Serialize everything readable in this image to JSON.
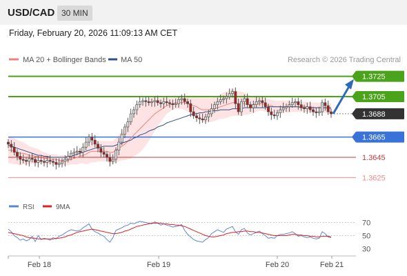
{
  "header": {
    "symbol": "USD/CAD",
    "timeframe": "30 MIN"
  },
  "date_line": "Friday, February 20, 2026 11:09:13 AM CET",
  "colors": {
    "resistance": "#4aa31a",
    "current": "#333333",
    "pivot": "#3a73d8",
    "support1": "#c23b3b",
    "support2": "#f08a8a",
    "candle_up": "#d8dcd8",
    "candle_down": "#a32222",
    "bollinger_fill": "#fde3e3",
    "ma20": "#f08080",
    "ma50": "#2e4f8a",
    "rsi": "#5b86d8",
    "rsi_ma": "#e02020",
    "arrow": "#2f6bb5"
  },
  "chart_data": [
    {
      "type": "candlestick",
      "title": "",
      "legend": [
        {
          "name": "MA 20 + Bollinger Bands",
          "color": "#f08080"
        },
        {
          "name": "MA 50",
          "color": "#2e4f8a"
        }
      ],
      "watermark": "Research © 2026 Trading Central",
      "ylim": [
        1.3615,
        1.3735
      ],
      "levels": [
        {
          "label": "1.3725",
          "value": 1.3725,
          "kind": "resistance"
        },
        {
          "label": "1.3705",
          "value": 1.3705,
          "kind": "resistance"
        },
        {
          "label": "1.3688",
          "value": 1.3688,
          "kind": "current"
        },
        {
          "label": "1.3665",
          "value": 1.3665,
          "kind": "pivot"
        },
        {
          "label": "1.3645",
          "value": 1.3645,
          "kind": "support"
        },
        {
          "label": "1.3625",
          "value": 1.3625,
          "kind": "support"
        }
      ],
      "x_ticks": [
        "Feb 18",
        "Feb 19",
        "Feb 20",
        "Feb 21"
      ],
      "arrow": {
        "from": 1.3688,
        "to": 1.3725,
        "direction": "up"
      },
      "close": [
        1.3658,
        1.3655,
        1.365,
        1.3646,
        1.3643,
        1.3642,
        1.3641,
        1.3644,
        1.3643,
        1.364,
        1.3642,
        1.3641,
        1.364,
        1.3642,
        1.3641,
        1.364,
        1.3638,
        1.3639,
        1.3641,
        1.3643,
        1.3646,
        1.3649,
        1.365,
        1.3651,
        1.365,
        1.3655,
        1.366,
        1.3665,
        1.3662,
        1.3658,
        1.3654,
        1.365,
        1.3648,
        1.3645,
        1.3641,
        1.3643,
        1.3652,
        1.366,
        1.3668,
        1.3675,
        1.368,
        1.3688,
        1.3692,
        1.3697,
        1.37,
        1.3701,
        1.37,
        1.3699,
        1.37,
        1.3701,
        1.3699,
        1.3698,
        1.37,
        1.3699,
        1.3698,
        1.3697,
        1.3698,
        1.3702,
        1.3703,
        1.37,
        1.3698,
        1.369,
        1.3686,
        1.3684,
        1.3683,
        1.3682,
        1.3685,
        1.3688,
        1.3693,
        1.3697,
        1.37,
        1.3702,
        1.3703,
        1.3705,
        1.3708,
        1.371,
        1.3698,
        1.369,
        1.37,
        1.3703,
        1.3697,
        1.3694,
        1.3697,
        1.37,
        1.3701,
        1.3699,
        1.3695,
        1.369,
        1.3687,
        1.3686,
        1.3689,
        1.3692,
        1.3694,
        1.3695,
        1.3697,
        1.3699,
        1.37,
        1.3697,
        1.3694,
        1.3693,
        1.3695,
        1.3692,
        1.369,
        1.3689,
        1.369,
        1.3699,
        1.3696,
        1.369,
        1.3688
      ],
      "ma20": [
        1.3652,
        1.3652,
        1.3651,
        1.365,
        1.3649,
        1.3649,
        1.3648,
        1.3647,
        1.3647,
        1.3646,
        1.3646,
        1.3645,
        1.3644,
        1.3644,
        1.3643,
        1.3643,
        1.3643,
        1.3642,
        1.3642,
        1.3642,
        1.3642,
        1.3643,
        1.3644,
        1.3645,
        1.3646,
        1.3647,
        1.3648,
        1.365,
        1.3651,
        1.3651,
        1.3651,
        1.3651,
        1.3651,
        1.3651,
        1.365,
        1.365,
        1.3652,
        1.3654,
        1.3656,
        1.3658,
        1.3661,
        1.3664,
        1.3667,
        1.367,
        1.3673,
        1.3676,
        1.3679,
        1.3682,
        1.3685,
        1.3688,
        1.369,
        1.3692,
        1.3694,
        1.3696,
        1.3697,
        1.3698,
        1.3699,
        1.3699,
        1.3699,
        1.3699,
        1.3698,
        1.3697,
        1.3696,
        1.3695,
        1.3693,
        1.3692,
        1.3692,
        1.3692,
        1.3692,
        1.3693,
        1.3694,
        1.3695,
        1.3696,
        1.3697,
        1.3698,
        1.3699,
        1.3699,
        1.3698,
        1.3698,
        1.3698,
        1.3697,
        1.3697,
        1.3697,
        1.3698,
        1.3698,
        1.3698,
        1.3697,
        1.3696,
        1.3696,
        1.3695,
        1.3695,
        1.3695,
        1.3695,
        1.3695,
        1.3695,
        1.3695,
        1.3695,
        1.3695,
        1.3695,
        1.3695,
        1.3695,
        1.3694,
        1.3694,
        1.3694,
        1.3694,
        1.3694,
        1.3694,
        1.3693,
        1.3693
      ],
      "bb_width": [
        0.0013,
        0.0013,
        0.0013,
        0.0012,
        0.0012,
        0.0011,
        0.001,
        0.0009,
        0.0008,
        0.0008,
        0.0007,
        0.0006,
        0.0006,
        0.0005,
        0.0005,
        0.0005,
        0.0005,
        0.0005,
        0.0005,
        0.0005,
        0.0005,
        0.0005,
        0.0006,
        0.0007,
        0.0007,
        0.0008,
        0.001,
        0.0011,
        0.0011,
        0.0011,
        0.001,
        0.001,
        0.001,
        0.001,
        0.0011,
        0.0011,
        0.0012,
        0.0013,
        0.0014,
        0.0016,
        0.0018,
        0.002,
        0.0021,
        0.0022,
        0.0023,
        0.0023,
        0.0022,
        0.0021,
        0.0019,
        0.0017,
        0.0014,
        0.0012,
        0.001,
        0.0008,
        0.0007,
        0.0006,
        0.0006,
        0.0006,
        0.0006,
        0.0007,
        0.0008,
        0.0009,
        0.001,
        0.0011,
        0.0011,
        0.0012,
        0.0012,
        0.0012,
        0.0012,
        0.0012,
        0.0012,
        0.0012,
        0.0013,
        0.0013,
        0.0013,
        0.0013,
        0.0013,
        0.0012,
        0.0012,
        0.0011,
        0.001,
        0.0009,
        0.0008,
        0.0008,
        0.0007,
        0.0007,
        0.0007,
        0.0006,
        0.0006,
        0.0006,
        0.0006,
        0.0006,
        0.0006,
        0.0006,
        0.0006,
        0.0005,
        0.0005,
        0.0005,
        0.0005,
        0.0005,
        0.0005,
        0.0005,
        0.0005,
        0.0005,
        0.0005,
        0.0005,
        0.0005,
        0.0005,
        0.0005
      ],
      "ma50": [
        1.3657,
        1.3656,
        1.3655,
        1.3654,
        1.3653,
        1.3652,
        1.3651,
        1.365,
        1.3649,
        1.3648,
        1.3647,
        1.3647,
        1.3646,
        1.3646,
        1.3645,
        1.3645,
        1.3645,
        1.3645,
        1.3645,
        1.3645,
        1.3646,
        1.3646,
        1.3647,
        1.3648,
        1.3649,
        1.365,
        1.3651,
        1.3652,
        1.3653,
        1.3654,
        1.3655,
        1.3655,
        1.3656,
        1.3656,
        1.3656,
        1.3656,
        1.3657,
        1.3658,
        1.3659,
        1.366,
        1.3661,
        1.3662,
        1.3664,
        1.3665,
        1.3667,
        1.3668,
        1.3669,
        1.3671,
        1.3672,
        1.3673,
        1.3675,
        1.3676,
        1.3677,
        1.3679,
        1.368,
        1.3681,
        1.3682,
        1.3683,
        1.3684,
        1.3685,
        1.3686,
        1.3687,
        1.3688,
        1.3688,
        1.3689,
        1.3689,
        1.369,
        1.369,
        1.3691,
        1.3691,
        1.3691,
        1.3692,
        1.3692,
        1.3692,
        1.3692,
        1.3693,
        1.3693,
        1.3693,
        1.3693,
        1.3694,
        1.3694,
        1.3694,
        1.3694,
        1.3694,
        1.3694,
        1.3694,
        1.3694,
        1.3695,
        1.3695,
        1.3695,
        1.3695,
        1.3695,
        1.3695,
        1.3695,
        1.3695,
        1.3695,
        1.3695,
        1.3695,
        1.3694,
        1.3694,
        1.3694,
        1.3694,
        1.3694,
        1.3694,
        1.3694,
        1.3694,
        1.3694,
        1.3694,
        1.3694
      ]
    },
    {
      "type": "line",
      "title": "",
      "legend": [
        {
          "name": "RSI",
          "color": "#5b86d8"
        },
        {
          "name": "9MA",
          "color": "#e02020"
        }
      ],
      "y_ticks": [
        70,
        50,
        30
      ],
      "ylim": [
        20,
        80
      ],
      "rsi": [
        60,
        56,
        50,
        47,
        43,
        45,
        42,
        44,
        49,
        41,
        50,
        44,
        46,
        45,
        43,
        47,
        45,
        49,
        51,
        54,
        57,
        59,
        58,
        57,
        58,
        62,
        65,
        68,
        60,
        56,
        54,
        51,
        49,
        44,
        40,
        47,
        58,
        60,
        62,
        65,
        66,
        69,
        68,
        70,
        72,
        71,
        70,
        69,
        68,
        71,
        69,
        66,
        68,
        66,
        65,
        63,
        64,
        65,
        67,
        58,
        52,
        48,
        44,
        42,
        41,
        40,
        44,
        47,
        53,
        56,
        59,
        57,
        55,
        60,
        62,
        64,
        56,
        52,
        59,
        61,
        54,
        51,
        53,
        55,
        57,
        53,
        50,
        46,
        47,
        46,
        50,
        52,
        52,
        53,
        54,
        56,
        53,
        49,
        50,
        48,
        47,
        48,
        46,
        45,
        46,
        56,
        53,
        48,
        47
      ],
      "rsi_ma": [
        55,
        54,
        53,
        52,
        51,
        50,
        48,
        47,
        46,
        46,
        45,
        45,
        45,
        45,
        45,
        45,
        46,
        46,
        47,
        48,
        50,
        51,
        53,
        55,
        56,
        57,
        58,
        59,
        60,
        59,
        58,
        57,
        56,
        55,
        54,
        53,
        53,
        54,
        55,
        57,
        58,
        60,
        62,
        64,
        65,
        66,
        67,
        68,
        69,
        69,
        69,
        69,
        68,
        68,
        67,
        67,
        66,
        66,
        65,
        64,
        62,
        60,
        58,
        56,
        54,
        52,
        50,
        49,
        48,
        48,
        49,
        50,
        51,
        53,
        54,
        55,
        55,
        56,
        56,
        57,
        57,
        56,
        56,
        55,
        55,
        54,
        53,
        52,
        51,
        50,
        50,
        50,
        50,
        50,
        51,
        52,
        52,
        51,
        51,
        50,
        50,
        49,
        49,
        48,
        48,
        49,
        49,
        49,
        48
      ]
    }
  ]
}
